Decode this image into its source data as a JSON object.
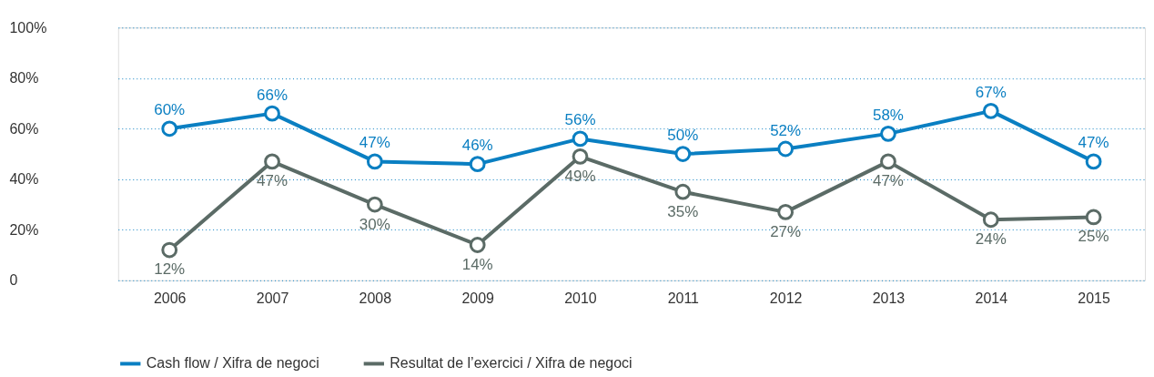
{
  "chart_data": {
    "type": "line",
    "categories": [
      "2006",
      "2007",
      "2008",
      "2009",
      "2010",
      "2011",
      "2012",
      "2013",
      "2014",
      "2015"
    ],
    "series": [
      {
        "name": "Cash flow / Xifra de negoci",
        "color": "#0a7fc2",
        "values": [
          60,
          66,
          47,
          46,
          56,
          50,
          52,
          58,
          67,
          47
        ],
        "value_labels": [
          "60%",
          "66%",
          "47%",
          "46%",
          "56%",
          "50%",
          "52%",
          "58%",
          "67%",
          "47%"
        ]
      },
      {
        "name": "Resultat de l’exercici / Xifra de negoci",
        "color": "#5b6b66",
        "values": [
          12,
          47,
          30,
          14,
          49,
          35,
          27,
          47,
          24,
          25
        ],
        "value_labels": [
          "12%",
          "47%",
          "30%",
          "14%",
          "49%",
          "35%",
          "27%",
          "47%",
          "24%",
          "25%"
        ]
      }
    ],
    "ylim": [
      0,
      100
    ],
    "yticks": [
      0,
      {
        "value": 20,
        "label": "20%"
      },
      {
        "value": 40,
        "label": "40%"
      },
      {
        "value": 60,
        "label": "60%"
      },
      {
        "value": 80,
        "label": "80%"
      },
      {
        "value": 100,
        "label": "100%"
      }
    ],
    "grid": "y",
    "legend": "bottom left",
    "marker": "circle",
    "line_style": "solid"
  }
}
